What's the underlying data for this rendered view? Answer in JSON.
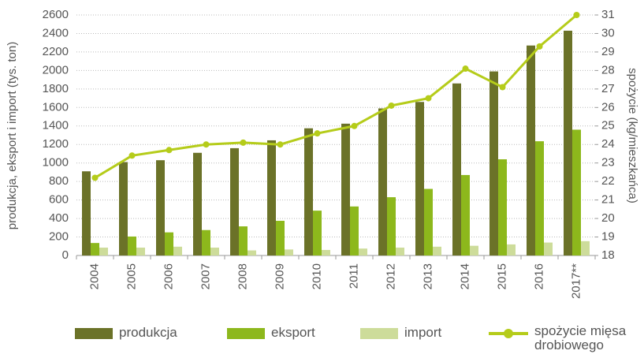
{
  "chart_data": {
    "type": "bar-line",
    "y_label": "produkcja, eksport i import (tys. ton)",
    "y2_label": "spożycie (kg/mieszkańca)",
    "categories": [
      "2004",
      "2005",
      "2006",
      "2007",
      "2008",
      "2009",
      "2010",
      "2011",
      "2012",
      "2013",
      "2014",
      "2015",
      "2016",
      "2017**"
    ],
    "series": [
      {
        "name": "produkcja",
        "color": "#6b7228",
        "kind": "bar",
        "values": [
          910,
          1010,
          1030,
          1110,
          1160,
          1245,
          1375,
          1425,
          1590,
          1660,
          1860,
          1990,
          2270,
          2430
        ]
      },
      {
        "name": "eksport",
        "color": "#8db81c",
        "kind": "bar",
        "values": [
          135,
          205,
          250,
          275,
          315,
          375,
          485,
          530,
          630,
          720,
          870,
          1040,
          1235,
          1360
        ]
      },
      {
        "name": "import",
        "color": "#cddc9a",
        "kind": "bar",
        "values": [
          85,
          85,
          95,
          85,
          55,
          65,
          60,
          75,
          85,
          95,
          105,
          120,
          140,
          155
        ]
      },
      {
        "name": "spożycie mięsa drobiowego",
        "color": "#b5cc1a",
        "kind": "line",
        "axis": "y2",
        "values": [
          22.2,
          23.4,
          23.7,
          24.0,
          24.1,
          24.0,
          24.6,
          25.0,
          26.1,
          26.5,
          28.1,
          27.1,
          29.3,
          31.0
        ]
      }
    ],
    "ylim": [
      0,
      2600
    ],
    "yticks": [
      0,
      200,
      400,
      600,
      800,
      1000,
      1200,
      1400,
      1600,
      1800,
      2000,
      2200,
      2400,
      2600
    ],
    "y2lim": [
      18,
      31
    ],
    "y2ticks": [
      18,
      19,
      20,
      21,
      22,
      23,
      24,
      25,
      26,
      27,
      28,
      29,
      30,
      31
    ],
    "grid": true,
    "legend": "bottom"
  }
}
